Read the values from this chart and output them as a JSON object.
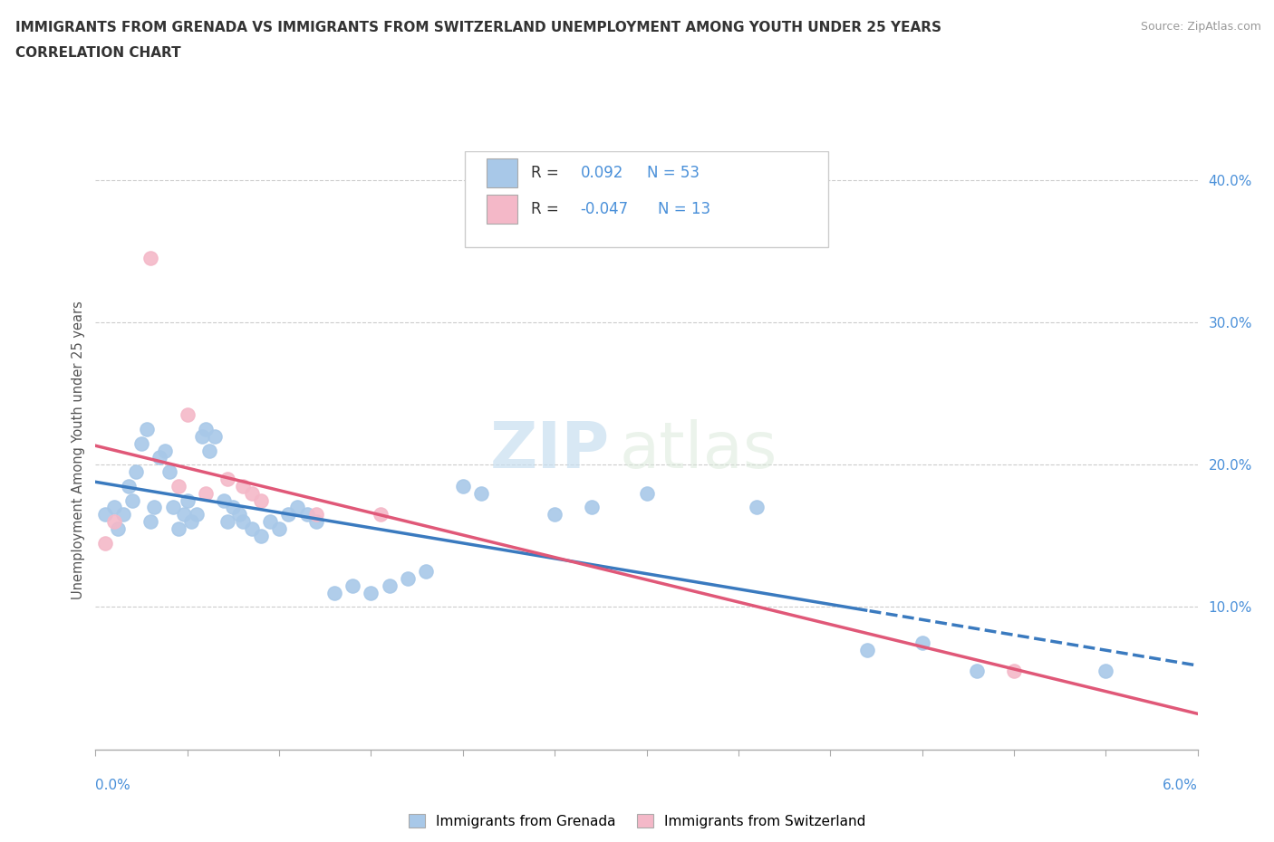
{
  "title_line1": "IMMIGRANTS FROM GRENADA VS IMMIGRANTS FROM SWITZERLAND UNEMPLOYMENT AMONG YOUTH UNDER 25 YEARS",
  "title_line2": "CORRELATION CHART",
  "source": "Source: ZipAtlas.com",
  "ylabel": "Unemployment Among Youth under 25 years",
  "xlim": [
    0.0,
    6.0
  ],
  "ylim": [
    0.0,
    42.0
  ],
  "grenada_color": "#a8c8e8",
  "switzerland_color": "#f4b8c8",
  "grenada_trend_color": "#3a7abf",
  "switzerland_trend_color": "#e05878",
  "legend_grenada": "R =  0.092  N = 53",
  "legend_switzerland": "R = -0.047  N = 13",
  "watermark_zip": "ZIP",
  "watermark_atlas": "atlas",
  "grenada_x": [
    0.05,
    0.1,
    0.12,
    0.15,
    0.18,
    0.2,
    0.22,
    0.25,
    0.28,
    0.3,
    0.32,
    0.35,
    0.38,
    0.4,
    0.42,
    0.45,
    0.48,
    0.5,
    0.52,
    0.55,
    0.58,
    0.6,
    0.62,
    0.65,
    0.7,
    0.72,
    0.75,
    0.78,
    0.8,
    0.85,
    0.9,
    0.95,
    1.0,
    1.05,
    1.1,
    1.15,
    1.2,
    1.3,
    1.4,
    1.5,
    1.6,
    1.7,
    1.8,
    2.0,
    2.1,
    2.5,
    2.7,
    3.0,
    3.6,
    4.2,
    4.5,
    4.8,
    5.5
  ],
  "grenada_y": [
    16.5,
    17.0,
    15.5,
    16.5,
    18.5,
    17.5,
    19.5,
    21.5,
    22.5,
    16.0,
    17.0,
    20.5,
    21.0,
    19.5,
    17.0,
    15.5,
    16.5,
    17.5,
    16.0,
    16.5,
    22.0,
    22.5,
    21.0,
    22.0,
    17.5,
    16.0,
    17.0,
    16.5,
    16.0,
    15.5,
    15.0,
    16.0,
    15.5,
    16.5,
    17.0,
    16.5,
    16.0,
    11.0,
    11.5,
    11.0,
    11.5,
    12.0,
    12.5,
    18.5,
    18.0,
    16.5,
    17.0,
    18.0,
    17.0,
    7.0,
    7.5,
    5.5,
    5.5
  ],
  "switzerland_x": [
    0.05,
    0.1,
    0.3,
    0.45,
    0.5,
    0.6,
    0.72,
    0.8,
    0.85,
    0.9,
    1.2,
    1.55,
    5.0
  ],
  "switzerland_y": [
    14.5,
    16.0,
    34.5,
    18.5,
    23.5,
    18.0,
    19.0,
    18.5,
    18.0,
    17.5,
    16.5,
    16.5,
    5.5
  ]
}
